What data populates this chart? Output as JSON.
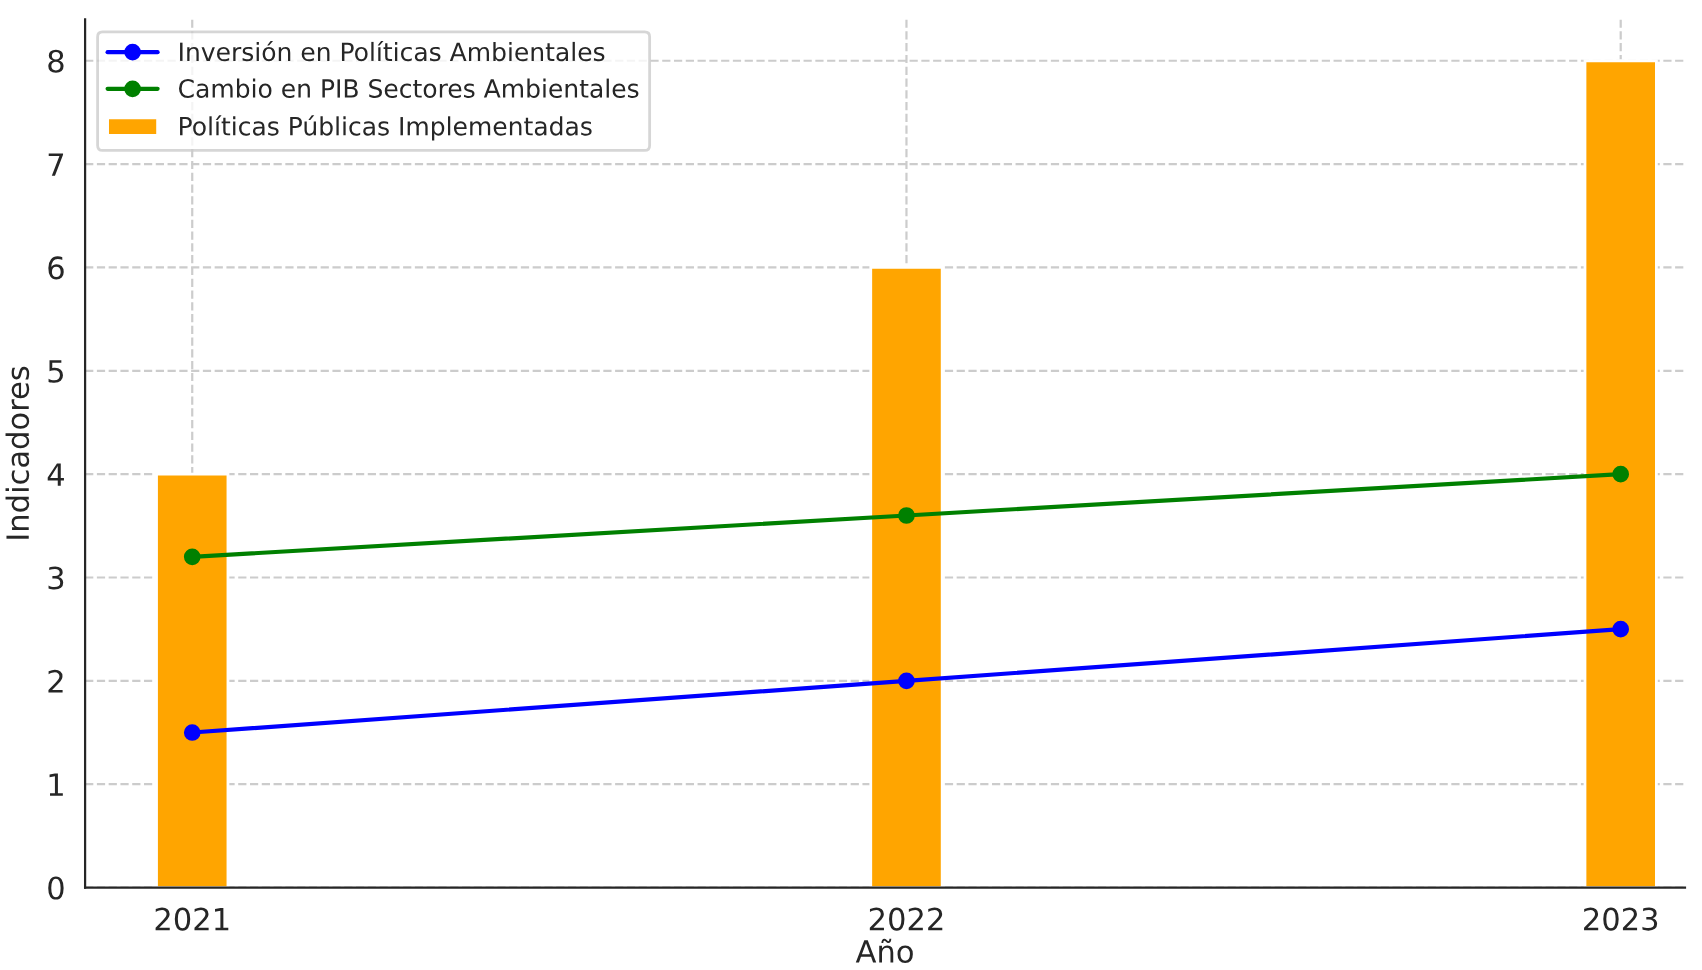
{
  "chart_data": {
    "type": "line",
    "xlabel": "Año",
    "ylabel": "Indicadores",
    "x": [
      2021,
      2022,
      2023
    ],
    "series": [
      {
        "name": "Inversión en Políticas Ambientales",
        "color": "#0000ff",
        "values": [
          1.5,
          2.0,
          2.5
        ]
      },
      {
        "name": "Cambio en PIB Sectores Ambientales",
        "color": "#008000",
        "values": [
          3.2,
          3.6,
          4.0
        ]
      },
      {
        "name": "Políticas Públicas Implementadas",
        "type": "bar",
        "color": "#ffa500",
        "values": [
          4,
          6,
          8
        ]
      }
    ],
    "xlim": [
      2020.85,
      2023.09
    ],
    "xticks": [
      2021,
      2022,
      2023
    ],
    "ylim": [
      0,
      8.4
    ],
    "yticks": [
      0,
      1,
      2,
      3,
      4,
      5,
      6,
      7,
      8
    ],
    "grid": true,
    "legend": "top left",
    "marker": "circle",
    "line_style": "solid"
  }
}
